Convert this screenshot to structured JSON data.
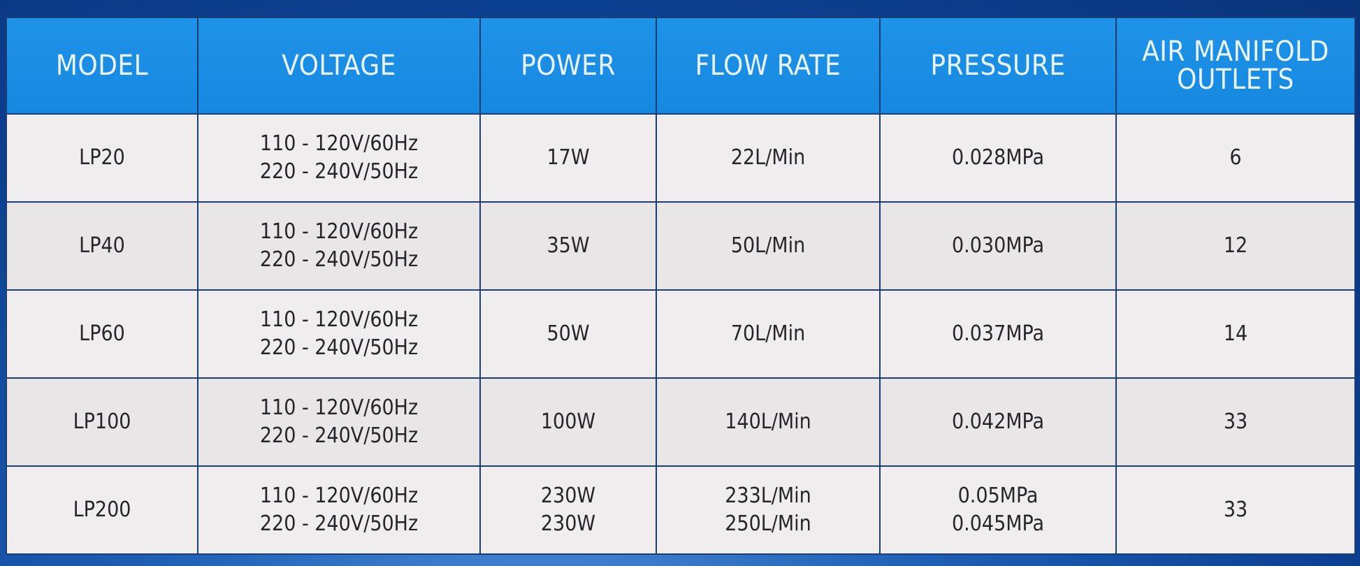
{
  "table": {
    "headers": [
      "MODEL",
      "VOLTAGE",
      "POWER",
      "FLOW RATE",
      "PRESSURE",
      "AIR MANIFOLD OUTLETS"
    ],
    "header_lines": [
      [
        "MODEL"
      ],
      [
        "VOLTAGE"
      ],
      [
        "POWER"
      ],
      [
        "FLOW RATE"
      ],
      [
        "PRESSURE"
      ],
      [
        "AIR MANIFOLD",
        "OUTLETS"
      ]
    ],
    "rows": [
      {
        "model": [
          "LP20"
        ],
        "voltage": [
          "110 - 120V/60Hz",
          "220 - 240V/50Hz"
        ],
        "power": [
          "17W"
        ],
        "flow_rate": [
          "22L/Min"
        ],
        "pressure": [
          "0.028MPa"
        ],
        "outlets": [
          "6"
        ]
      },
      {
        "model": [
          "LP40"
        ],
        "voltage": [
          "110 - 120V/60Hz",
          "220 - 240V/50Hz"
        ],
        "power": [
          "35W"
        ],
        "flow_rate": [
          "50L/Min"
        ],
        "pressure": [
          "0.030MPa"
        ],
        "outlets": [
          "12"
        ]
      },
      {
        "model": [
          "LP60"
        ],
        "voltage": [
          "110 - 120V/60Hz",
          "220 - 240V/50Hz"
        ],
        "power": [
          "50W"
        ],
        "flow_rate": [
          "70L/Min"
        ],
        "pressure": [
          "0.037MPa"
        ],
        "outlets": [
          "14"
        ]
      },
      {
        "model": [
          "LP100"
        ],
        "voltage": [
          "110 - 120V/60Hz",
          "220 - 240V/50Hz"
        ],
        "power": [
          "100W"
        ],
        "flow_rate": [
          "140L/Min"
        ],
        "pressure": [
          "0.042MPa"
        ],
        "outlets": [
          "33"
        ]
      },
      {
        "model": [
          "LP200"
        ],
        "voltage": [
          "110 - 120V/60Hz",
          "220 - 240V/50Hz"
        ],
        "power": [
          "230W",
          "230W"
        ],
        "flow_rate": [
          "233L/Min",
          "250L/Min"
        ],
        "pressure": [
          "0.05MPa",
          "0.045MPa"
        ],
        "outlets": [
          "33"
        ]
      }
    ]
  },
  "colors": {
    "header_background": "#1688e0",
    "header_text": "#e9f4ff",
    "cell_background": "#eeecec",
    "cell_text": "#26262a",
    "border": "#1c3d73",
    "page_background": "#1f5fb5"
  }
}
